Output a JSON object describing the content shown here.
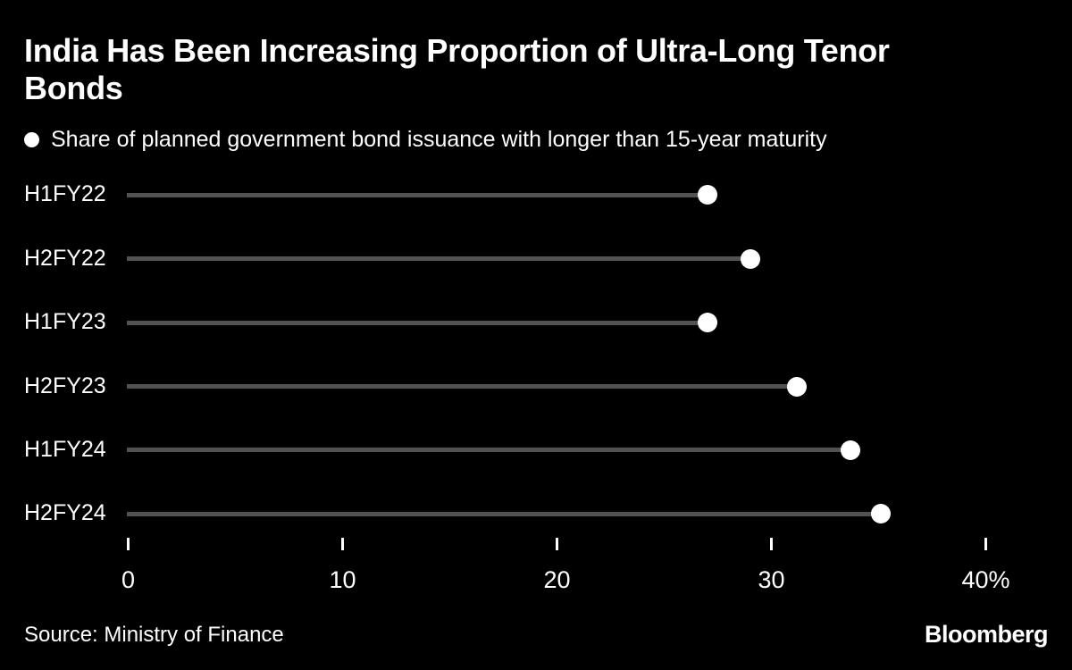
{
  "title": {
    "line1": "India Has Been Increasing Proportion of Ultra-Long Tenor",
    "line2": "Bonds"
  },
  "legend": {
    "label": "Share of planned government bond issuance with longer than 15-year maturity"
  },
  "chart_data": {
    "type": "bar",
    "style": "horizontal-lollipop",
    "title": "India Has Been Increasing Proportion of Ultra-Long Tenor Bonds",
    "series_label": "Share of planned government bond issuance with longer than 15-year maturity",
    "categories": [
      "H1FY22",
      "H2FY22",
      "H1FY23",
      "H2FY23",
      "H1FY24",
      "H2FY24"
    ],
    "values": [
      27,
      29,
      27,
      31.2,
      33.7,
      35.1
    ],
    "unit": "%",
    "xlim": [
      0,
      40
    ],
    "x_ticks": [
      0,
      10,
      20,
      30,
      40
    ],
    "x_tick_labels": [
      "0",
      "10",
      "20",
      "30",
      "40%"
    ],
    "grid": false,
    "legend_position": "top-left",
    "colors": {
      "background": "#000000",
      "text": "#ffffff",
      "stem": "#525252",
      "dot": "#ffffff"
    }
  },
  "footer": {
    "source": "Source: Ministry of Finance",
    "brand": "Bloomberg"
  }
}
